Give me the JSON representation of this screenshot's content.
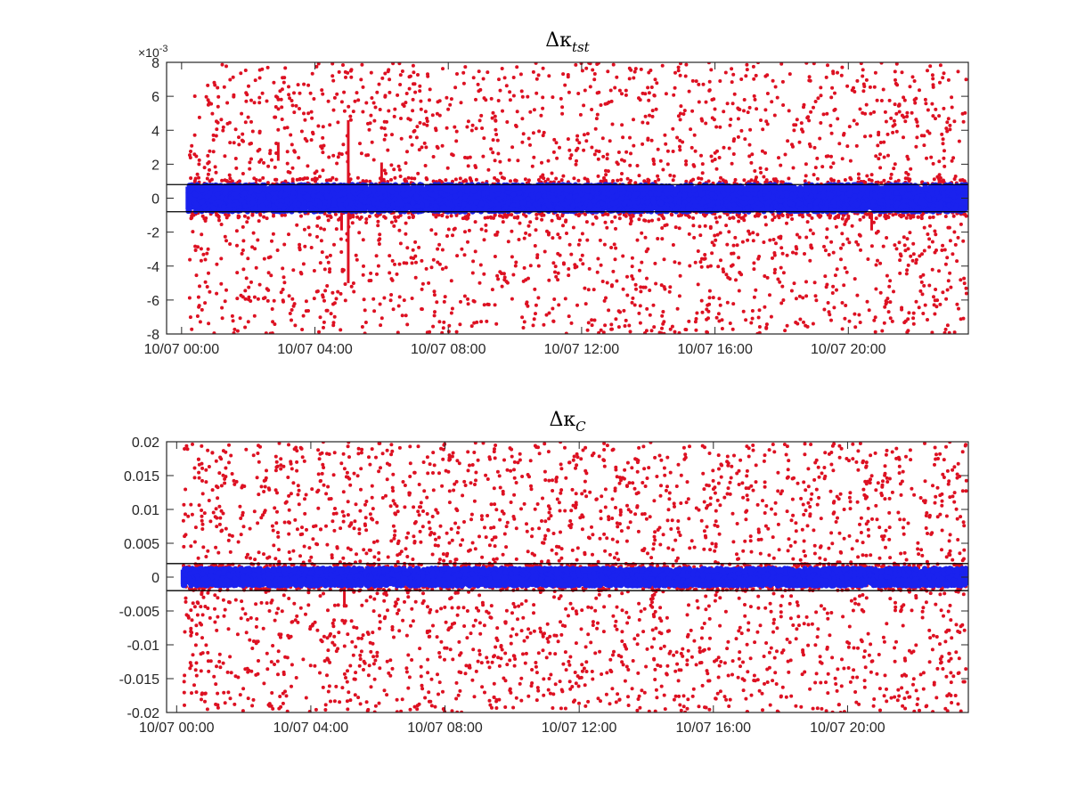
{
  "chart_data": [
    {
      "type": "scatter",
      "title": {
        "symbol": "Δκ",
        "subscript": "tst"
      },
      "xlabel": "",
      "ylabel": "",
      "x_tick_labels": [
        "10/07 00:00",
        "10/07 04:00",
        "10/07 08:00",
        "10/07 12:00",
        "10/07 16:00",
        "10/07 20:00"
      ],
      "x_tick_hours": [
        0,
        4,
        8,
        12,
        16,
        20
      ],
      "x_range_hours": [
        -0.45,
        23.6
      ],
      "data_x_range_hours": [
        0.2,
        23.55
      ],
      "y_ticks": [
        -8,
        -6,
        -4,
        -2,
        0,
        2,
        4,
        6,
        8
      ],
      "y_tick_labels": [
        "-8",
        "-6",
        "-4",
        "-2",
        "0",
        "2",
        "4",
        "6",
        "8"
      ],
      "y_exponent_label": "×10",
      "y_exponent_power": "-3",
      "ylim": [
        -8,
        8
      ],
      "unit_scale": 0.001,
      "threshold_lines": [
        0.8,
        -0.8
      ],
      "series": [
        {
          "role": "outliers",
          "color": "#dd1122",
          "distribution": "uniform",
          "range": [
            -8,
            8
          ],
          "count": 2200
        },
        {
          "role": "inliers",
          "color": "#1a22ee",
          "distribution": "band",
          "range": [
            -0.8,
            0.8
          ],
          "count": 6000
        }
      ],
      "spikes": [
        {
          "hour": 2.9,
          "from": 2.2,
          "to": 3.3,
          "color": "#dd1122"
        },
        {
          "hour": 5.0,
          "from": -5.0,
          "to": 4.6,
          "color": "#dd1122"
        },
        {
          "hour": 4.8,
          "from": -1.9,
          "to": -0.8,
          "color": "#dd1122"
        },
        {
          "hour": 6.0,
          "from": 0.8,
          "to": 2.1,
          "color": "#dd1122"
        },
        {
          "hour": 20.7,
          "from": -1.9,
          "to": -0.8,
          "color": "#dd1122"
        }
      ],
      "grid": false
    },
    {
      "type": "scatter",
      "title": {
        "symbol": "Δκ",
        "subscript": "C"
      },
      "xlabel": "",
      "ylabel": "",
      "x_tick_labels": [
        "10/07 00:00",
        "10/07 04:00",
        "10/07 08:00",
        "10/07 12:00",
        "10/07 16:00",
        "10/07 20:00"
      ],
      "x_tick_hours": [
        0,
        4,
        8,
        12,
        16,
        20
      ],
      "x_range_hours": [
        -0.3,
        23.6
      ],
      "data_x_range_hours": [
        0.2,
        23.55
      ],
      "y_ticks": [
        -0.02,
        -0.015,
        -0.01,
        -0.005,
        0,
        0.005,
        0.01,
        0.015,
        0.02
      ],
      "y_tick_labels": [
        "-0.02",
        "-0.015",
        "-0.01",
        "-0.005",
        "0",
        "0.005",
        "0.01",
        "0.015",
        "0.02"
      ],
      "ylim": [
        -0.02,
        0.02
      ],
      "threshold_lines": [
        0.002,
        -0.002
      ],
      "series": [
        {
          "role": "outliers",
          "color": "#dd1122",
          "distribution": "uniform",
          "range": [
            -0.02,
            0.02
          ],
          "count": 2600
        },
        {
          "role": "inliers",
          "color": "#1a22ee",
          "distribution": "band",
          "range": [
            -0.0013,
            0.0013
          ],
          "count": 6000
        }
      ],
      "spikes": [
        {
          "hour": 5.0,
          "from": -0.0045,
          "to": 0.0022,
          "color": "#dd1122"
        }
      ],
      "grid": false
    }
  ]
}
